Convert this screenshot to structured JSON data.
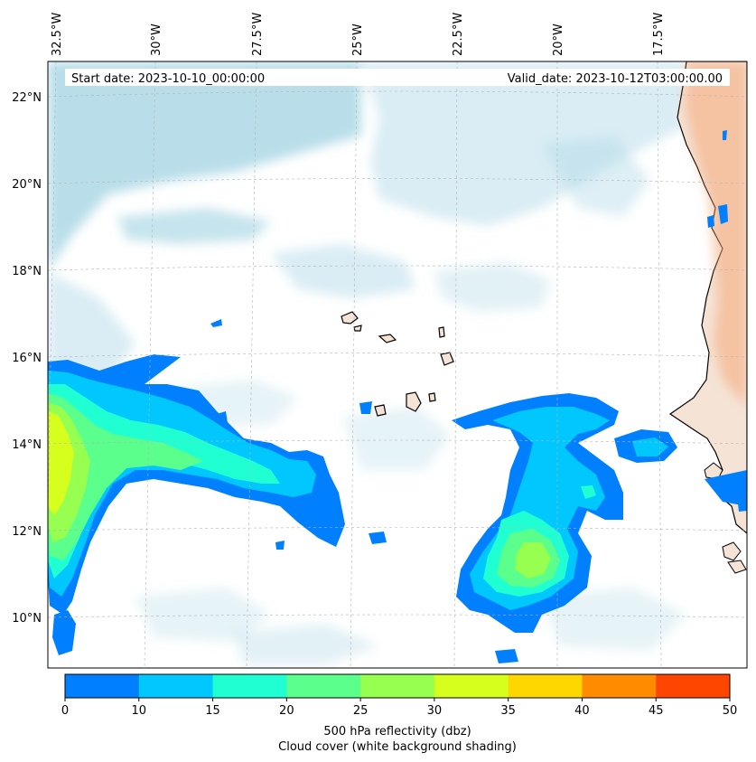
{
  "header": {
    "start_date": "Start date: 2023-10-10_00:00:00",
    "valid_date": "Valid_date: 2023-10-12T03:00:00.00"
  },
  "map": {
    "lon_labels": [
      "32.5°W",
      "30°W",
      "27.5°W",
      "25°W",
      "22.5°W",
      "20°W",
      "17.5°W"
    ],
    "lat_labels": [
      "22°N",
      "20°N",
      "18°N",
      "16°N",
      "14°N",
      "12°N",
      "10°N"
    ]
  },
  "colorbar": {
    "ticks": [
      "0",
      "10",
      "15",
      "20",
      "25",
      "30",
      "35",
      "40",
      "45",
      "50"
    ],
    "colors": [
      "#0080ff",
      "#00c8ff",
      "#20ffd2",
      "#5aff8c",
      "#96ff50",
      "#d7ff1e",
      "#ffd700",
      "#ff8c00",
      "#ff4600"
    ],
    "label_line1": "500 hPa reflectivity (dbz)",
    "label_line2": "Cloud cover (white background shading)"
  }
}
